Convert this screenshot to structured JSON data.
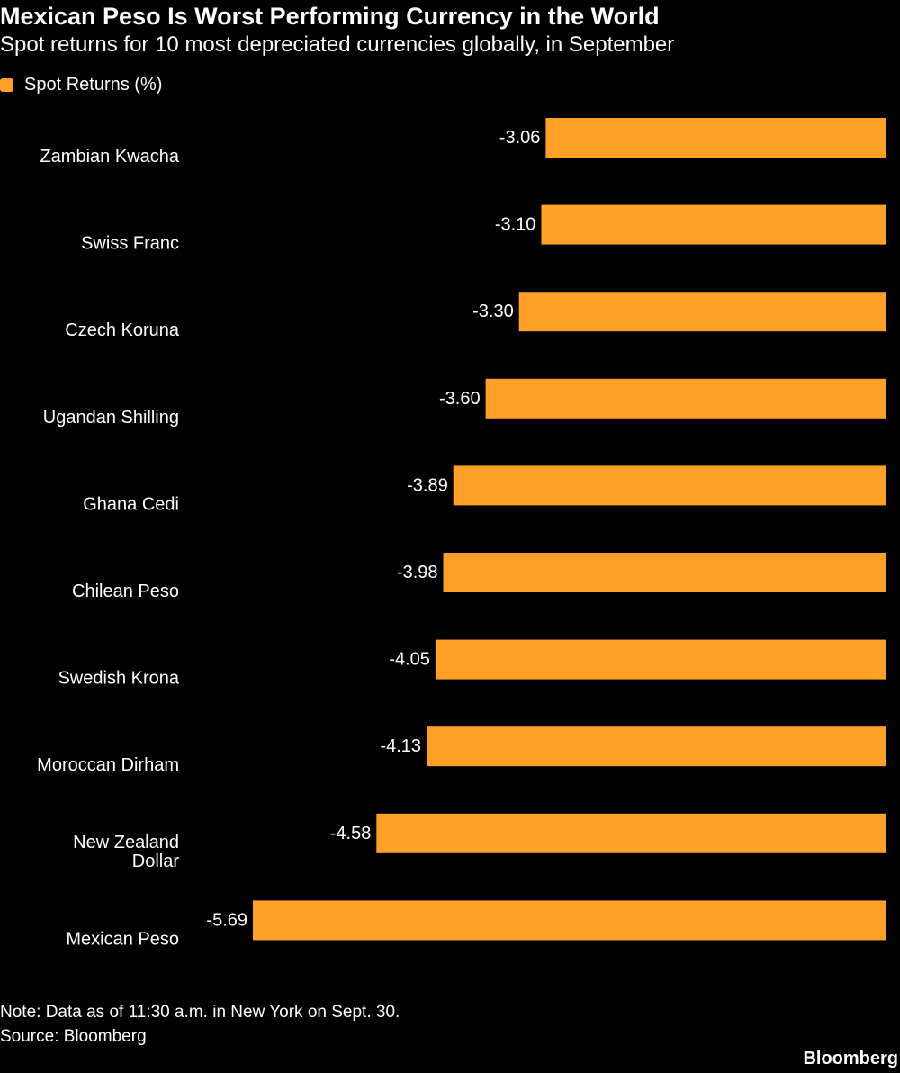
{
  "header": {
    "title": "Mexican Peso Is Worst Performing Currency in the World",
    "subtitle": "Spot returns for 10 most depreciated currencies globally, in September"
  },
  "legend": {
    "label": "Spot Returns (%)",
    "color": "#FFA028"
  },
  "chart_data": {
    "type": "bar",
    "orientation": "horizontal",
    "categories": [
      "Zambian Kwacha",
      "Swiss Franc",
      "Czech Koruna",
      "Ugandan Shilling",
      "Ghana Cedi",
      "Chilean Peso",
      "Swedish Krona",
      "Moroccan Dirham",
      "New Zealand Dollar",
      "Mexican Peso"
    ],
    "series": [
      {
        "name": "Spot Returns (%)",
        "values": [
          -3.06,
          -3.1,
          -3.3,
          -3.6,
          -3.89,
          -3.98,
          -4.05,
          -4.13,
          -4.58,
          -5.69
        ],
        "labels": [
          "-3.06",
          "-3.10",
          "-3.30",
          "-3.60",
          "-3.89",
          "-3.98",
          "-4.05",
          "-4.13",
          "-4.58",
          "-5.69"
        ]
      }
    ],
    "xlim": [
      -5.69,
      0
    ],
    "grid": false,
    "legend_position": "top-left",
    "bar_color": "#FFA028",
    "background": "#000000"
  },
  "footer": {
    "note": "Note: Data as of 11:30 a.m. in New York on Sept. 30.",
    "source": "Source: Bloomberg",
    "brand": "Bloomberg"
  }
}
